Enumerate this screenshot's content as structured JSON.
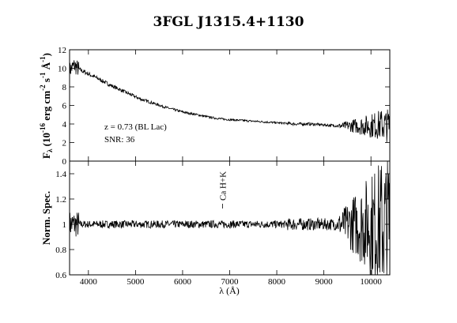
{
  "chart_data": [
    {
      "type": "line",
      "title": "3FGL J1315.4+1130",
      "ylabel_main": "F",
      "ylabel_sub": "λ",
      "ylabel_rest": " (10",
      "ylabel_exp": "-16",
      "ylabel_units": " erg cm",
      "ylabel_units_exp1": "-2",
      "ylabel_s": " s",
      "ylabel_s_exp": "-1",
      "ylabel_ang": " Å",
      "ylabel_ang_exp": "-1",
      "ylabel_close": ")",
      "xlim": [
        3600,
        10400
      ],
      "ylim": [
        0,
        12
      ],
      "yticks": [
        0,
        2,
        4,
        6,
        8,
        10,
        12
      ],
      "annotations": [
        "z = 0.73 (BL Lac)",
        "SNR: 36"
      ],
      "series": [
        {
          "x": [
            3600,
            3700,
            3800,
            4000,
            4200,
            4500,
            4800,
            5100,
            5400,
            5700,
            6000,
            6300,
            6600,
            6900,
            7200,
            7500,
            7800,
            8100,
            8400,
            8700,
            9000,
            9300,
            9600,
            9900,
            10200,
            10400
          ],
          "values": [
            9.8,
            10.3,
            9.9,
            9.4,
            8.9,
            8.1,
            7.4,
            6.7,
            6.2,
            5.7,
            5.3,
            5.0,
            4.7,
            4.5,
            4.4,
            4.3,
            4.2,
            4.1,
            4.0,
            4.0,
            3.9,
            3.8,
            3.8,
            3.8,
            3.9,
            3.8
          ]
        }
      ]
    },
    {
      "type": "line",
      "ylabel": "Norm. Spec.",
      "xlabel": "λ (Å)",
      "xlim": [
        3600,
        10400
      ],
      "ylim": [
        0.6,
        1.5
      ],
      "yticks": [
        0.6,
        0.8,
        1,
        1.2,
        1.4
      ],
      "ytick_labels": [
        "0.6",
        "0.8",
        "1",
        "1.2",
        "1.4"
      ],
      "xticks": [
        4000,
        5000,
        6000,
        7000,
        8000,
        9000,
        10000
      ],
      "feature_label": "Ca H+K",
      "feature_x": 6850,
      "series": [
        {
          "x": [
            3600,
            4400,
            5200,
            6000,
            6800,
            7600,
            8400,
            9200,
            10000,
            10400
          ],
          "values": [
            1.0,
            1.0,
            1.0,
            1.0,
            1.0,
            1.0,
            1.0,
            1.0,
            1.0,
            1.0
          ]
        }
      ]
    }
  ]
}
